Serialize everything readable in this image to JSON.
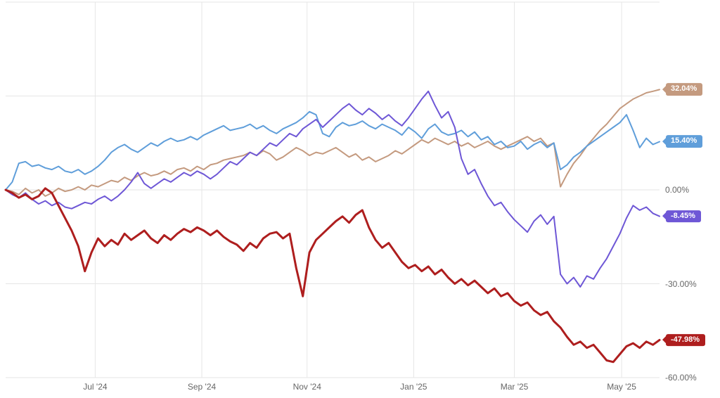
{
  "chart_data": {
    "type": "line",
    "title": "",
    "legend": "none",
    "background": "#FFFFFF",
    "gridline_color": "#E6E6E6",
    "axis_label_color": "#666666",
    "x_axis": {
      "tick_labels": [
        "Jul '24",
        "Sep '24",
        "Nov '24",
        "Jan '25",
        "Mar '25",
        "May '25"
      ],
      "tick_positions": [
        0.137,
        0.3,
        0.461,
        0.624,
        0.778,
        0.942
      ]
    },
    "y_axis": {
      "unit": "%",
      "range": [
        -60,
        60
      ],
      "gridline_values": [
        60,
        30,
        0,
        -30,
        -60
      ],
      "labeled_ticks": [
        "0.00%",
        "-30.00%",
        "-60.00%"
      ],
      "labeled_tick_values": [
        0,
        -30,
        -60
      ]
    },
    "series": [
      {
        "name": "tan-series",
        "color": "#C49A7F",
        "end_label": "32.04%",
        "end_value": 32.04,
        "line_width": 2,
        "values": [
          0,
          -0.5,
          -1.5,
          0.5,
          -1,
          0,
          -2,
          -1,
          0.5,
          -0.5,
          0,
          1,
          0,
          1.5,
          1,
          2,
          3,
          2.5,
          4,
          3,
          4.5,
          5.5,
          4.5,
          5,
          6,
          5,
          6.5,
          7,
          6,
          7.5,
          6.5,
          8,
          8.5,
          9.5,
          10,
          10.5,
          11,
          12,
          11,
          12.5,
          11.5,
          9.5,
          10.5,
          12,
          13.5,
          12.5,
          11,
          12,
          11.5,
          12.5,
          13.5,
          12,
          10.5,
          11.5,
          9.5,
          10.5,
          9,
          10,
          11,
          12.5,
          11.5,
          13,
          14.5,
          16,
          15,
          16.5,
          15.5,
          14.5,
          15.5,
          14,
          15,
          13.5,
          14.5,
          15.5,
          14,
          13,
          14,
          15,
          16,
          17,
          15.5,
          16.5,
          14,
          15,
          1,
          5,
          8.5,
          11,
          14,
          16.5,
          19,
          21,
          23.5,
          26,
          27.5,
          29,
          30,
          31,
          31.5,
          32.04
        ]
      },
      {
        "name": "blue-series",
        "color": "#5F9EDA",
        "end_label": "15.40%",
        "end_value": 15.4,
        "line_width": 2,
        "values": [
          0,
          2.5,
          8.5,
          9,
          7.5,
          8,
          7,
          6.5,
          7.5,
          6,
          5.5,
          6.5,
          5,
          6,
          7.5,
          9.5,
          12,
          13.5,
          14.5,
          13,
          12,
          13.5,
          15,
          14,
          15.5,
          16.5,
          15.5,
          16,
          17,
          16,
          17.5,
          18.5,
          19.5,
          20.5,
          19,
          19.5,
          20,
          21,
          19.5,
          20.5,
          19,
          18,
          19.5,
          20.5,
          21.5,
          23,
          25,
          24,
          18,
          17,
          20,
          21.5,
          20.5,
          21,
          22,
          20.5,
          19.5,
          21,
          20,
          19,
          17.5,
          20,
          18.5,
          16.5,
          19.5,
          21,
          18.5,
          17.5,
          18,
          19,
          17,
          18.5,
          16,
          17,
          14.5,
          15.5,
          13.5,
          14,
          15.5,
          13,
          14.5,
          15.5,
          13.5,
          15,
          6.5,
          8,
          10.5,
          12,
          14,
          15.5,
          17,
          18.5,
          20,
          21.5,
          24,
          19,
          13.5,
          16.5,
          14.5,
          15.4
        ]
      },
      {
        "name": "purple-series",
        "color": "#6E57D6",
        "end_label": "-8.45%",
        "end_value": -8.45,
        "line_width": 2,
        "values": [
          0,
          -1.5,
          -2.5,
          -1,
          -3,
          -4.5,
          -3.5,
          -5,
          -4,
          -5.5,
          -6,
          -5,
          -4,
          -4.5,
          -3,
          -2,
          -3.5,
          -2,
          0,
          2.5,
          5.5,
          2,
          0.5,
          2,
          3.5,
          2.5,
          4,
          5.5,
          4.5,
          6,
          5,
          3.5,
          5,
          7,
          9,
          8,
          10,
          12,
          11,
          13,
          15,
          14,
          16,
          18,
          17,
          19.5,
          21,
          22.5,
          20,
          22,
          24,
          26,
          27.5,
          25.5,
          24,
          26,
          24.5,
          22.5,
          24,
          22,
          20.5,
          23,
          26,
          29,
          31.5,
          27,
          23,
          25,
          20,
          10,
          5,
          6.5,
          2,
          -2,
          -5,
          -4,
          -7,
          -9.5,
          -11.5,
          -13.5,
          -10,
          -8,
          -11,
          -8.5,
          -27,
          -30,
          -28,
          -31,
          -27.5,
          -28.5,
          -25,
          -22,
          -18,
          -14,
          -9,
          -5,
          -6.5,
          -5.5,
          -7.5,
          -8.45
        ]
      },
      {
        "name": "red-series",
        "color": "#AE1E1E",
        "end_label": "-47.98%",
        "end_value": -47.98,
        "line_width": 3,
        "values": [
          0,
          -1,
          -2.5,
          -1.5,
          -3,
          -2,
          0.5,
          -1,
          -5,
          -9,
          -13,
          -18,
          -26,
          -20,
          -15.5,
          -18,
          -16,
          -17.5,
          -14,
          -16,
          -14.5,
          -13,
          -15.5,
          -17,
          -14.5,
          -16,
          -14,
          -12.5,
          -13.5,
          -12,
          -13,
          -14.5,
          -13,
          -15,
          -16.5,
          -17.5,
          -19.5,
          -17,
          -18.5,
          -15.5,
          -14,
          -13.5,
          -15.5,
          -14,
          -25,
          -34,
          -20,
          -16,
          -14,
          -12,
          -10,
          -8.5,
          -10.5,
          -8,
          -6.5,
          -12,
          -16,
          -18.5,
          -17,
          -20,
          -23,
          -25,
          -24,
          -26,
          -24.5,
          -27,
          -25.5,
          -28,
          -30,
          -28.5,
          -30.5,
          -29,
          -31,
          -33,
          -31.5,
          -34,
          -33,
          -35.5,
          -37,
          -36,
          -38.5,
          -40,
          -39,
          -42,
          -44,
          -47,
          -49.5,
          -48.5,
          -50.5,
          -49.5,
          -52,
          -54.5,
          -55,
          -52.5,
          -50,
          -49,
          -50.5,
          -48.5,
          -49.5,
          -47.98
        ]
      }
    ]
  }
}
